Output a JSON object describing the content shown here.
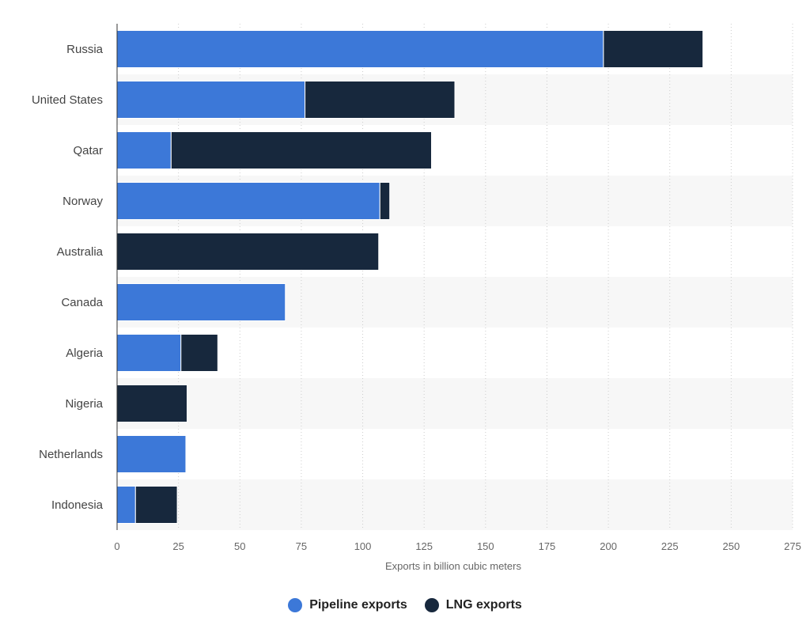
{
  "chart_data": {
    "type": "bar",
    "orientation": "horizontal",
    "stacked": true,
    "categories": [
      "Russia",
      "United States",
      "Qatar",
      "Norway",
      "Australia",
      "Canada",
      "Algeria",
      "Nigeria",
      "Netherlands",
      "Indonesia"
    ],
    "series": [
      {
        "name": "Pipeline exports",
        "color": "#3c78d8",
        "values": [
          198,
          76.5,
          22,
          107,
          0,
          68.5,
          26,
          0,
          28,
          7.5
        ]
      },
      {
        "name": "LNG exports",
        "color": "#17283d",
        "values": [
          40.5,
          61,
          106,
          4,
          106.5,
          0,
          15,
          28.5,
          0,
          17
        ]
      }
    ],
    "xlabel": "Exports in billion cubic meters",
    "xlim": [
      0,
      275
    ],
    "xticks": [
      0,
      25,
      50,
      75,
      100,
      125,
      150,
      175,
      200,
      225,
      250,
      275
    ],
    "xtick_labels": [
      "0",
      "25",
      "50",
      "75",
      "100",
      "125",
      "150",
      "175",
      "200",
      "225",
      "250",
      "275"
    ],
    "grid": true,
    "legend_position": "bottom-center"
  }
}
